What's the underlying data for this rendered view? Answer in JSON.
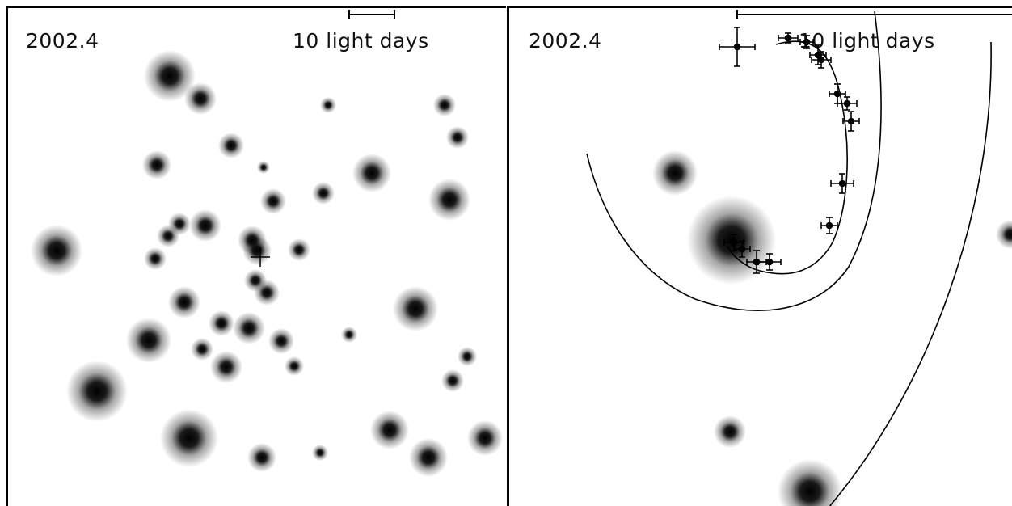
{
  "left_panel": {
    "epoch_label": "2002.4",
    "scale_label": "10 light days"
  },
  "right_panel": {
    "epoch_label": "2002.4",
    "scale_label": "10 light days"
  },
  "colors": {
    "background": "#ffffff",
    "ink": "#000000"
  }
}
